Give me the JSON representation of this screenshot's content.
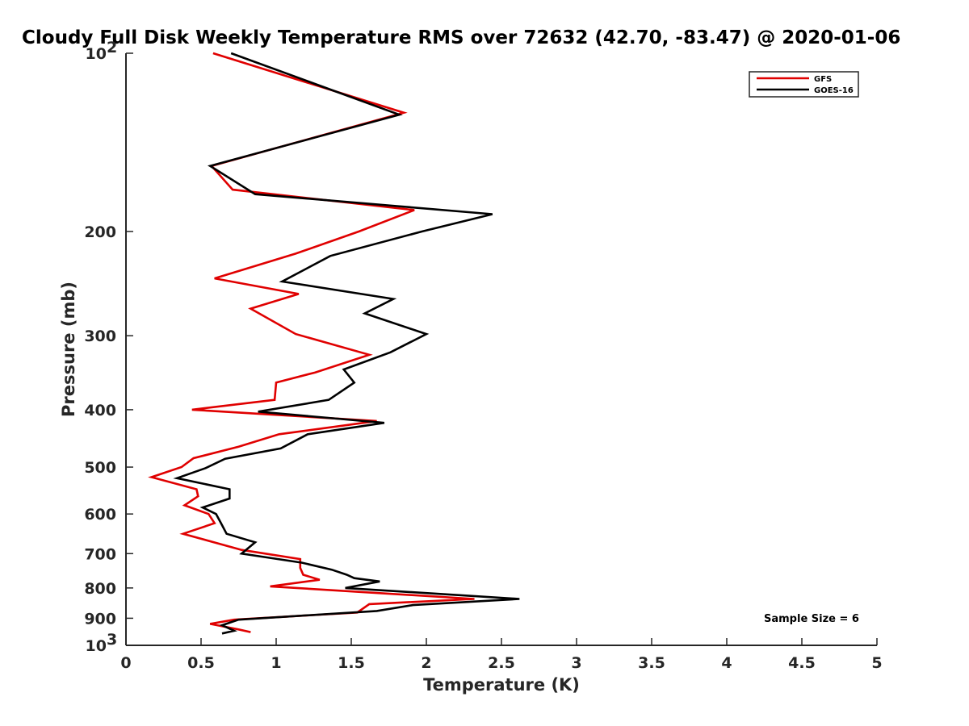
{
  "chart_data": {
    "type": "line",
    "title": "Cloudy Full Disk Weekly Temperature RMS over 72632 (42.70, -83.47) @ 2020-01-06",
    "xlabel": "Temperature (K)",
    "ylabel": "Pressure (mb)",
    "xlim": [
      0,
      5
    ],
    "ylim": [
      100,
      1000
    ],
    "y_scale": "log",
    "y_reversed": true,
    "x_ticks": [
      "0",
      "0.5",
      "1",
      "1.5",
      "2",
      "2.5",
      "3",
      "3.5",
      "4",
      "4.5",
      "5"
    ],
    "y_ticks": [
      {
        "value": 100,
        "label": "10",
        "exp": "2"
      },
      {
        "value": 200,
        "label": "200"
      },
      {
        "value": 300,
        "label": "300"
      },
      {
        "value": 400,
        "label": "400"
      },
      {
        "value": 500,
        "label": "500"
      },
      {
        "value": 600,
        "label": "600"
      },
      {
        "value": 700,
        "label": "700"
      },
      {
        "value": 800,
        "label": "800"
      },
      {
        "value": 900,
        "label": "900"
      },
      {
        "value": 1000,
        "label": "10",
        "exp": "3"
      }
    ],
    "grid": false,
    "legend_position": "top-right",
    "annotation": "Sample Size = 6",
    "series": [
      {
        "name": "GFS",
        "color": "#e00000",
        "x": [
          0.58,
          1.85,
          0.57,
          0.71,
          1.92,
          1.55,
          1.13,
          0.59,
          1.15,
          0.83,
          1.13,
          1.62,
          1.26,
          1.0,
          0.99,
          0.44,
          1.67,
          1.02,
          0.75,
          0.45,
          0.37,
          0.17,
          0.47,
          0.48,
          0.39,
          0.55,
          0.59,
          0.38,
          0.77,
          1.16,
          1.16,
          1.18,
          1.29,
          0.96,
          2.32,
          1.62,
          1.54,
          0.72,
          0.56,
          0.75,
          0.83
        ],
        "y": [
          100,
          126,
          155,
          170,
          184,
          200,
          218,
          240,
          255,
          270,
          298,
          323,
          346,
          360,
          385,
          400,
          418,
          440,
          462,
          483,
          500,
          520,
          545,
          560,
          580,
          600,
          622,
          648,
          690,
          715,
          740,
          760,
          775,
          795,
          835,
          852,
          880,
          905,
          920,
          940,
          950
        ]
      },
      {
        "name": "GOES-16",
        "color": "#000000",
        "x": [
          0.7,
          1.82,
          0.56,
          0.86,
          2.44,
          1.97,
          1.36,
          1.04,
          1.78,
          1.59,
          2.0,
          1.76,
          1.45,
          1.52,
          1.35,
          0.88,
          1.72,
          1.21,
          1.03,
          0.66,
          0.53,
          0.34,
          0.69,
          0.69,
          0.51,
          0.6,
          0.63,
          0.67,
          0.86,
          0.77,
          1.17,
          1.37,
          1.47,
          1.52,
          1.69,
          1.46,
          2.62,
          1.91,
          1.67,
          0.75,
          0.64,
          0.72,
          0.64
        ],
        "y": [
          100,
          127,
          155,
          173,
          187,
          200,
          220,
          243,
          260,
          275,
          298,
          320,
          342,
          360,
          385,
          403,
          421,
          440,
          465,
          484,
          502,
          522,
          545,
          565,
          585,
          600,
          620,
          648,
          670,
          700,
          725,
          745,
          760,
          770,
          780,
          800,
          835,
          855,
          875,
          905,
          925,
          945,
          955
        ]
      }
    ]
  }
}
